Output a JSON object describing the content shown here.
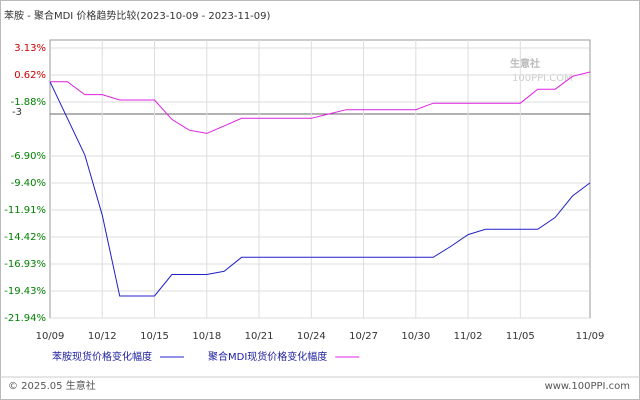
{
  "chart_data": {
    "type": "line",
    "title": "苯胺 - 聚合MDI 价格趋势比较(2023-10-09 - 2023-11-09)",
    "categories": [
      "10/09",
      null,
      null,
      "10/12",
      null,
      null,
      "10/15",
      null,
      null,
      "10/18",
      null,
      null,
      "10/21",
      null,
      null,
      "10/24",
      null,
      null,
      "10/27",
      null,
      null,
      "10/30",
      null,
      null,
      "11/02",
      null,
      null,
      "11/05",
      null,
      null,
      null,
      "11/09"
    ],
    "series": [
      {
        "name": "苯胺现货价格变化幅度",
        "color": "#2020c8",
        "values": [
          0,
          -3.4,
          -6.8,
          -12.4,
          -19.9,
          -19.9,
          -19.9,
          -17.9,
          -17.9,
          -17.9,
          -17.6,
          -16.3,
          -16.3,
          -16.3,
          -16.3,
          -16.3,
          -16.3,
          -16.3,
          -16.3,
          -16.3,
          -16.3,
          -16.3,
          -16.3,
          -15.3,
          -14.2,
          -13.7,
          -13.7,
          -13.7,
          -13.7,
          -12.6,
          -10.6,
          -9.4
        ]
      },
      {
        "name": "聚合MDI现货价格变化幅度",
        "color": "#e020e0",
        "values": [
          0,
          0,
          -1.2,
          -1.2,
          -1.7,
          -1.7,
          -1.7,
          -3.5,
          -4.5,
          -4.8,
          -4.1,
          -3.4,
          -3.4,
          -3.4,
          -3.4,
          -3.4,
          -3.0,
          -2.6,
          -2.6,
          -2.6,
          -2.6,
          -2.6,
          -2.0,
          -2.0,
          -2.0,
          -2.0,
          -2.0,
          -2.0,
          -0.7,
          -0.7,
          0.5,
          0.9
        ]
      }
    ],
    "ylim": [
      -21.94,
      3.13
    ],
    "yticks": [
      {
        "value": 3.13,
        "label": "3.13%"
      },
      {
        "value": 0.62,
        "label": "0.62%"
      },
      {
        "value": -1.88,
        "label": "-1.88%"
      },
      {
        "value": -6.9,
        "label": "-6.90%"
      },
      {
        "value": -9.4,
        "label": "-9.40%"
      },
      {
        "value": -11.91,
        "label": "-11.91%"
      },
      {
        "value": -14.42,
        "label": "-14.42%"
      },
      {
        "value": -16.93,
        "label": "-16.93%"
      },
      {
        "value": -19.43,
        "label": "-19.43%"
      },
      {
        "value": -21.94,
        "label": "-21.94%"
      }
    ],
    "reference_line": -3,
    "tick_colors": {
      "positive": "#cc0000",
      "negative": "#008000"
    },
    "grid": true,
    "watermark": [
      "生意社",
      "100PPI.COM"
    ],
    "footer_left": "© 2025.05 生意社",
    "footer_right": "www.100PPI.com"
  }
}
